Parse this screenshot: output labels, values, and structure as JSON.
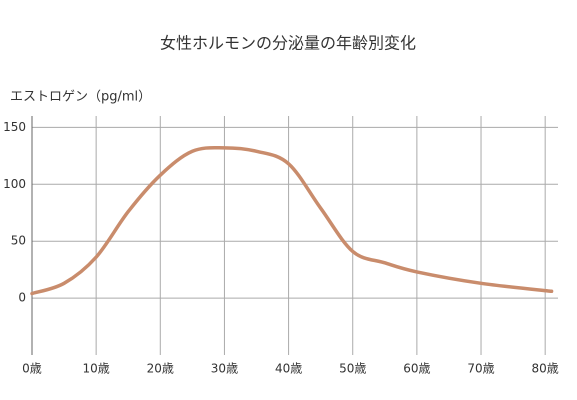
{
  "chart_data": {
    "type": "line",
    "title": "女性ホルモンの分泌量の年齢別変化",
    "y_label": "エストロゲン（pg/ml）",
    "x": [
      0,
      5,
      10,
      15,
      20,
      25,
      30,
      35,
      40,
      45,
      50,
      55,
      60,
      70,
      81
    ],
    "series": [
      {
        "color": "#c98c6c",
        "values": [
          4,
          13,
          36,
          76,
          108,
          129,
          132,
          129,
          118,
          79,
          41,
          31,
          23,
          13,
          6
        ]
      }
    ],
    "xlim": [
      0,
      82
    ],
    "ylim": [
      -50,
      160
    ],
    "xticks": [
      {
        "value": 0,
        "label": "0歳"
      },
      {
        "value": 10,
        "label": "10歳"
      },
      {
        "value": 20,
        "label": "20歳"
      },
      {
        "value": 30,
        "label": "30歳"
      },
      {
        "value": 40,
        "label": "40歳"
      },
      {
        "value": 50,
        "label": "50歳"
      },
      {
        "value": 60,
        "label": "60歳"
      },
      {
        "value": 70,
        "label": "70歳"
      },
      {
        "value": 80,
        "label": "80歳"
      }
    ],
    "yticks": [
      0,
      50,
      100,
      150
    ],
    "grid": true
  }
}
